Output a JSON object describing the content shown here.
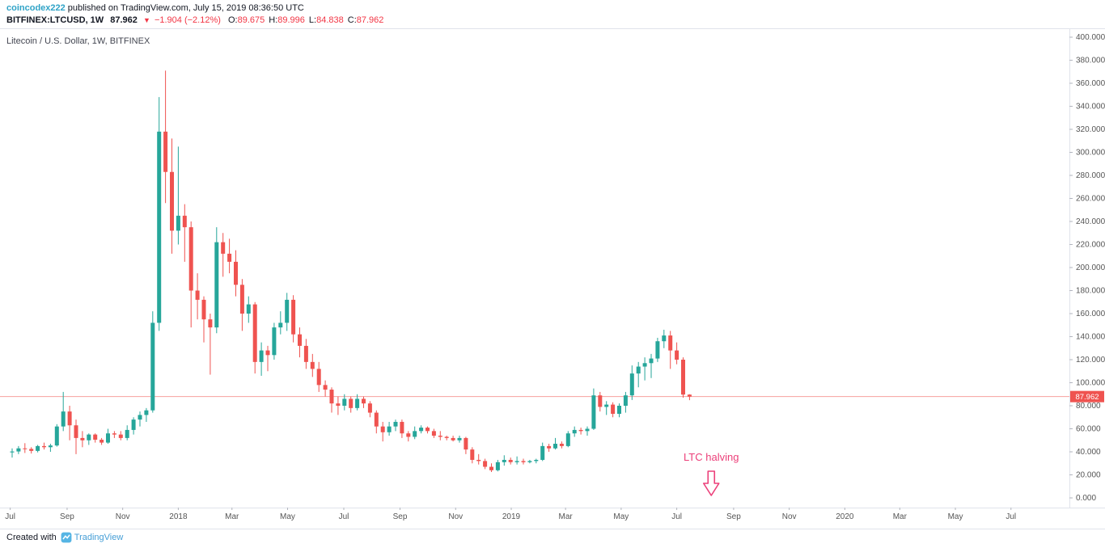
{
  "header": {
    "username": "coincodex222",
    "published_text": "published on TradingView.com, July 15, 2019 08:36:50 UTC",
    "quote": {
      "symbol": "BITFINEX:LTCUSD, 1W",
      "last": "87.962",
      "direction_icon": "▼",
      "change": "−1.904 (−2.12%)",
      "ohlc": [
        {
          "label": "O:",
          "value": "89.675"
        },
        {
          "label": "H:",
          "value": "89.996"
        },
        {
          "label": "L:",
          "value": "84.838"
        },
        {
          "label": "C:",
          "value": "87.962"
        }
      ]
    }
  },
  "chart": {
    "watermark": "Litecoin / U.S. Dollar, 1W, BITFINEX",
    "price_label": "87.962",
    "annotation": {
      "text": "LTC halving",
      "week": 109.4,
      "color": "#ec407a"
    }
  },
  "chart_data": {
    "type": "candlestick",
    "title": "Litecoin / U.S. Dollar, 1W, BITFINEX",
    "symbol": "BITFINEX:LTCUSD",
    "interval": "1W",
    "ylim": [
      0,
      400
    ],
    "y_ticks": [
      400,
      380,
      360,
      340,
      320,
      300,
      280,
      260,
      240,
      220,
      200,
      180,
      160,
      140,
      120,
      100,
      80,
      60,
      40,
      20,
      0
    ],
    "y_tick_decimals": 3,
    "x_unit": "weeks since 2017-07-03",
    "xlim_weeks": [
      -1,
      165
    ],
    "x_ticks": [
      {
        "label": "Jul",
        "week": -0.3
      },
      {
        "label": "Sep",
        "week": 8.6
      },
      {
        "label": "Nov",
        "week": 17.3
      },
      {
        "label": "2018",
        "week": 26.0
      },
      {
        "label": "Mar",
        "week": 34.4
      },
      {
        "label": "May",
        "week": 43.1
      },
      {
        "label": "Jul",
        "week": 51.9
      },
      {
        "label": "Sep",
        "week": 60.7
      },
      {
        "label": "Nov",
        "week": 69.4
      },
      {
        "label": "2019",
        "week": 78.1
      },
      {
        "label": "Mar",
        "week": 86.6
      },
      {
        "label": "May",
        "week": 95.3
      },
      {
        "label": "Jul",
        "week": 104.0
      },
      {
        "label": "Sep",
        "week": 112.9
      },
      {
        "label": "Nov",
        "week": 121.6
      },
      {
        "label": "2020",
        "week": 130.3
      },
      {
        "label": "Mar",
        "week": 138.9
      },
      {
        "label": "May",
        "week": 147.6
      },
      {
        "label": "Jul",
        "week": 156.3
      }
    ],
    "last_price": 87.962,
    "colors": {
      "up": "#26a69a",
      "down": "#ef5350",
      "last_price_line": "#ef5350",
      "axis_text": "#555555",
      "axis_line": "#e0e3eb",
      "tick_mark": "#b2b5be",
      "annotation": "#ec407a"
    },
    "candles": [
      [
        39.5,
        43,
        35,
        40.3
      ],
      [
        40.3,
        45,
        38,
        43
      ],
      [
        43,
        47.5,
        39,
        42.5
      ],
      [
        42.5,
        44,
        38.5,
        40.8
      ],
      [
        40.8,
        46,
        39.5,
        45
      ],
      [
        45,
        48,
        42,
        44
      ],
      [
        44,
        47,
        40,
        45.5
      ],
      [
        45.5,
        64,
        44.5,
        62
      ],
      [
        62,
        92,
        58,
        75
      ],
      [
        75,
        80,
        50,
        63
      ],
      [
        63,
        68,
        38,
        52
      ],
      [
        52,
        58,
        44,
        50
      ],
      [
        50,
        56,
        46,
        55
      ],
      [
        55,
        56,
        48,
        50.5
      ],
      [
        50.5,
        52,
        46,
        48
      ],
      [
        48,
        60,
        47,
        56
      ],
      [
        56,
        58,
        52,
        55
      ],
      [
        55,
        58,
        50,
        52
      ],
      [
        52,
        63,
        50,
        59
      ],
      [
        59,
        70,
        55,
        68
      ],
      [
        68,
        75,
        62,
        72
      ],
      [
        72,
        78,
        66,
        76
      ],
      [
        76,
        162,
        74,
        152
      ],
      [
        152,
        348,
        145,
        318
      ],
      [
        318,
        371,
        256,
        283
      ],
      [
        283,
        312,
        212,
        232
      ],
      [
        232,
        305,
        220,
        245
      ],
      [
        245,
        255,
        205,
        235
      ],
      [
        235,
        240,
        148,
        180
      ],
      [
        180,
        195,
        155,
        172
      ],
      [
        172,
        175,
        135,
        155
      ],
      [
        155,
        160,
        107,
        148
      ],
      [
        148,
        235,
        143,
        222
      ],
      [
        222,
        230,
        192,
        212
      ],
      [
        212,
        225,
        195,
        205
      ],
      [
        205,
        215,
        175,
        185
      ],
      [
        185,
        190,
        145,
        160
      ],
      [
        160,
        175,
        152,
        168
      ],
      [
        168,
        170,
        108,
        118
      ],
      [
        118,
        135,
        106,
        128
      ],
      [
        128,
        132,
        110,
        124
      ],
      [
        124,
        152,
        120,
        148
      ],
      [
        148,
        162,
        142,
        152
      ],
      [
        152,
        178,
        145,
        172
      ],
      [
        172,
        176,
        135,
        142
      ],
      [
        142,
        148,
        122,
        132
      ],
      [
        132,
        138,
        112,
        118
      ],
      [
        118,
        125,
        105,
        112
      ],
      [
        112,
        118,
        92,
        98
      ],
      [
        98,
        102,
        88,
        94
      ],
      [
        94,
        96,
        74,
        82
      ],
      [
        82,
        88,
        72,
        80
      ],
      [
        80,
        90,
        76,
        86
      ],
      [
        86,
        88,
        74,
        78
      ],
      [
        78,
        90,
        76,
        86
      ],
      [
        86,
        88,
        78,
        82
      ],
      [
        82,
        84,
        70,
        74
      ],
      [
        74,
        76,
        56,
        62
      ],
      [
        62,
        66,
        49,
        57
      ],
      [
        57,
        66,
        54,
        62
      ],
      [
        62,
        68,
        58,
        66
      ],
      [
        66,
        68,
        52,
        56
      ],
      [
        56,
        58,
        49,
        53
      ],
      [
        53,
        62,
        51,
        58
      ],
      [
        58,
        63,
        56,
        61
      ],
      [
        61,
        62,
        56,
        58
      ],
      [
        58,
        60,
        52,
        54
      ],
      [
        54,
        58,
        50,
        53
      ],
      [
        53,
        54,
        50,
        52
      ],
      [
        52,
        54,
        49,
        50
      ],
      [
        50,
        54,
        48,
        52
      ],
      [
        52,
        53,
        38,
        42
      ],
      [
        42,
        44,
        30,
        33
      ],
      [
        33,
        38,
        29,
        32
      ],
      [
        32,
        34,
        25,
        27
      ],
      [
        27,
        30,
        22.5,
        24
      ],
      [
        24,
        33,
        23,
        31
      ],
      [
        31,
        37,
        28,
        33
      ],
      [
        33,
        35,
        29,
        31
      ],
      [
        31,
        36,
        29,
        32
      ],
      [
        32,
        34,
        29,
        31
      ],
      [
        31,
        33,
        30,
        32
      ],
      [
        32,
        34,
        30,
        33
      ],
      [
        33,
        48,
        32,
        45
      ],
      [
        45,
        47,
        40,
        43
      ],
      [
        43,
        52,
        42,
        47
      ],
      [
        47,
        49,
        43,
        45
      ],
      [
        45,
        58,
        44,
        56
      ],
      [
        56,
        62,
        53,
        59
      ],
      [
        59,
        61,
        55,
        58
      ],
      [
        58,
        62,
        54,
        60
      ],
      [
        60,
        95,
        59,
        89
      ],
      [
        89,
        92,
        75,
        79
      ],
      [
        79,
        84,
        72,
        81
      ],
      [
        81,
        83,
        70,
        73
      ],
      [
        73,
        82,
        70,
        80
      ],
      [
        80,
        92,
        74,
        89
      ],
      [
        89,
        115,
        85,
        108
      ],
      [
        108,
        118,
        96,
        114
      ],
      [
        114,
        122,
        102,
        117
      ],
      [
        117,
        125,
        104,
        121
      ],
      [
        121,
        139,
        118,
        136
      ],
      [
        136,
        146,
        130,
        141
      ],
      [
        141,
        145,
        112,
        128
      ],
      [
        128,
        135,
        116,
        120
      ],
      [
        120,
        122,
        87,
        89.7
      ],
      [
        89.675,
        89.996,
        84.838,
        87.962
      ]
    ]
  },
  "footer": {
    "created_with": "Created with",
    "brand": "TradingView"
  }
}
